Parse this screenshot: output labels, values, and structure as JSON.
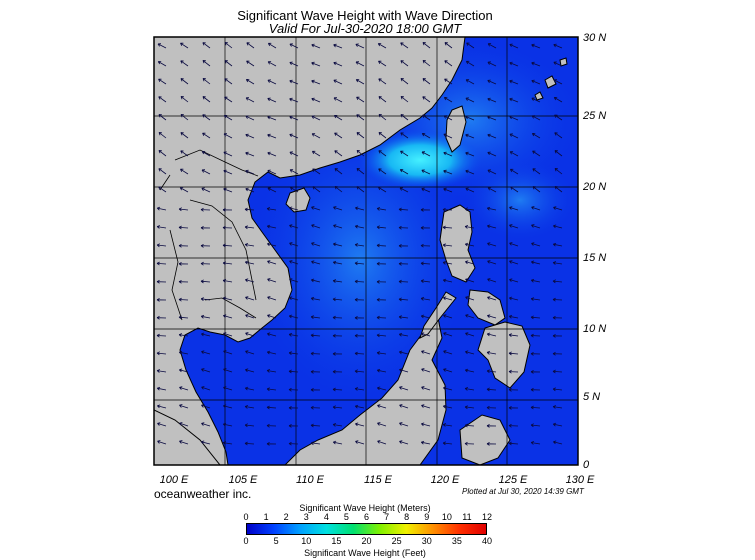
{
  "header": {
    "title": "Significant Wave Height with Wave Direction",
    "subtitle": "Valid For Jul-30-2020 18:00 GMT"
  },
  "map": {
    "lat_labels": [
      "30 N",
      "25 N",
      "20 N",
      "15 N",
      "10 N",
      "5 N",
      "0"
    ],
    "lon_labels": [
      "100 E",
      "105 E",
      "110 E",
      "115 E",
      "120 E",
      "125 E",
      "130 E"
    ],
    "land_color": "#c0c0c0",
    "sea_color": "#0a32e6",
    "high_wave_color": "#32dcf0"
  },
  "footer": {
    "credit": "oceanweather inc.",
    "plotted": "Plotted at Jul 30, 2020 14:39 GMT"
  },
  "colorbar": {
    "title_meters": "Significant Wave Height (Meters)",
    "title_feet": "Significant Wave Height (Feet)",
    "meters_ticks": [
      "0",
      "1",
      "2",
      "3",
      "4",
      "5",
      "6",
      "7",
      "8",
      "9",
      "10",
      "11",
      "12"
    ],
    "feet_ticks": [
      "0",
      "5",
      "10",
      "15",
      "20",
      "25",
      "30",
      "35",
      "40"
    ],
    "gradient_colors": [
      "#0000c8",
      "#0040ff",
      "#00a0ff",
      "#00e0e0",
      "#00e070",
      "#80f000",
      "#f0f000",
      "#ff9000",
      "#ff3000",
      "#e00000"
    ]
  }
}
